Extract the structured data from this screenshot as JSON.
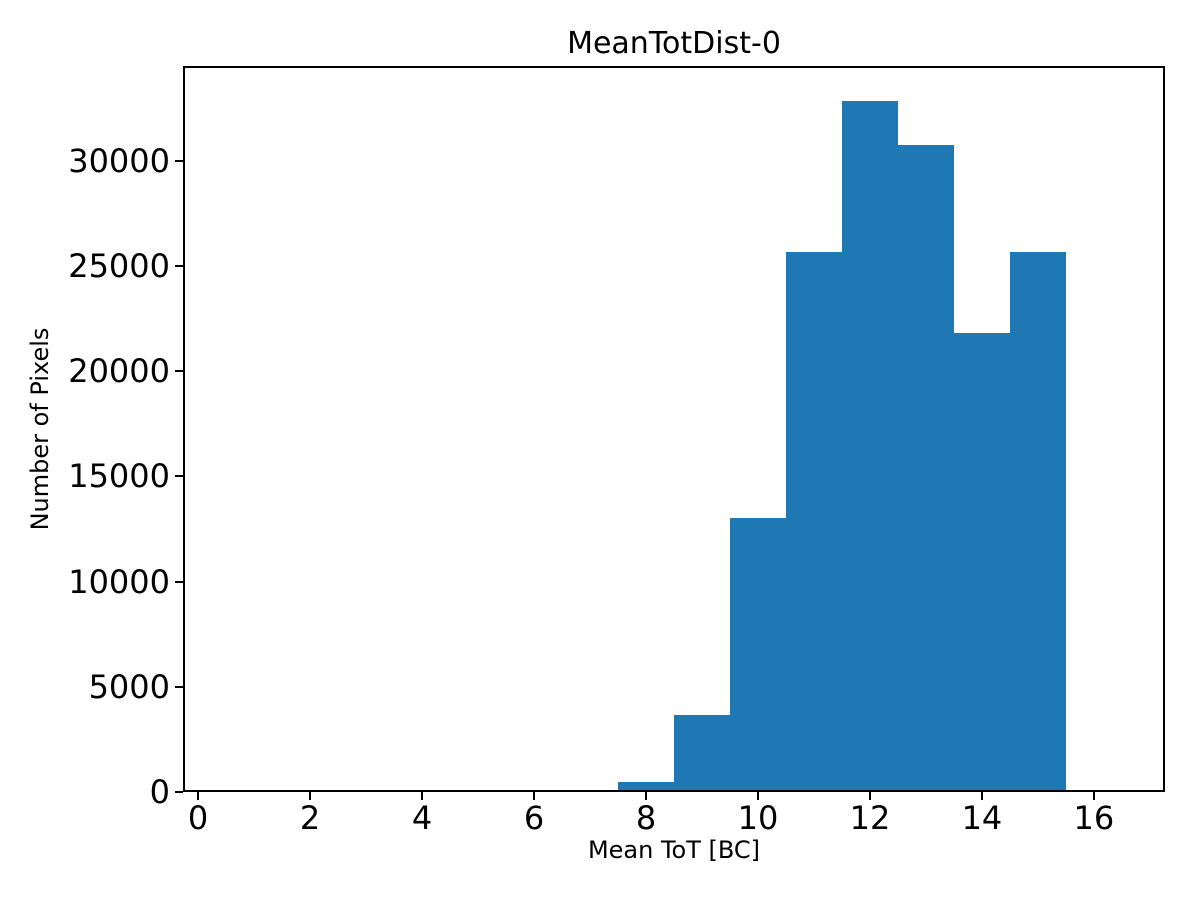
{
  "chart_data": {
    "type": "bar",
    "subtype": "histogram",
    "title": "MeanTotDist-0",
    "xlabel": "Mean ToT [BC]",
    "ylabel": "Number of Pixels",
    "bar_color": "#1f77b4",
    "background_color": "#ffffff",
    "axis_color": "#000000",
    "grid": false,
    "legend": "none",
    "bin_width": 1,
    "bin_edges": [
      0.5,
      1.5,
      2.5,
      3.5,
      4.5,
      5.5,
      6.5,
      7.5,
      8.5,
      9.5,
      10.5,
      11.5,
      12.5,
      13.5,
      14.5,
      15.5,
      16.5
    ],
    "counts": [
      0,
      0,
      0,
      0,
      0,
      0,
      95,
      475,
      3660,
      13030,
      25670,
      32850,
      30760,
      21820,
      25670,
      0
    ],
    "xticks": [
      0,
      2,
      4,
      6,
      8,
      10,
      12,
      14,
      16
    ],
    "yticks": [
      0,
      5000,
      10000,
      15000,
      20000,
      25000,
      30000
    ],
    "xlim": [
      -0.27,
      17.27
    ],
    "ylim": [
      0,
      34490
    ]
  }
}
